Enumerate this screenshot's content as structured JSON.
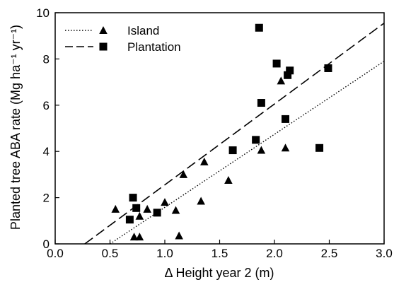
{
  "chart_data": {
    "type": "scatter",
    "xlabel": "Δ Height year 2 (m)",
    "ylabel": "Planted tree ABA rate (Mg ha⁻¹ yr⁻¹)",
    "xlim": [
      0.0,
      3.0
    ],
    "ylim": [
      0,
      10
    ],
    "x_ticks": [
      "0.0",
      "0.5",
      "1.0",
      "1.5",
      "2.0",
      "2.5",
      "3.0"
    ],
    "y_ticks": [
      "0",
      "2",
      "4",
      "6",
      "8",
      "10"
    ],
    "grid": false,
    "legend_position": "top-left",
    "series": [
      {
        "name": "Island",
        "marker": "triangle",
        "line_style": "dotted",
        "color": "#000000",
        "points": [
          [
            0.55,
            1.5
          ],
          [
            0.72,
            0.3
          ],
          [
            0.77,
            0.3
          ],
          [
            0.77,
            1.2
          ],
          [
            0.84,
            1.5
          ],
          [
            1.0,
            1.8
          ],
          [
            1.1,
            1.45
          ],
          [
            1.13,
            0.35
          ],
          [
            1.17,
            3.0
          ],
          [
            1.33,
            1.85
          ],
          [
            1.36,
            3.55
          ],
          [
            1.58,
            2.75
          ],
          [
            1.88,
            4.05
          ],
          [
            2.06,
            7.05
          ],
          [
            2.1,
            4.15
          ]
        ],
        "fit_line": [
          [
            0.5,
            0.0
          ],
          [
            3.0,
            7.9
          ]
        ]
      },
      {
        "name": "Plantation",
        "marker": "square",
        "line_style": "dashed",
        "color": "#000000",
        "points": [
          [
            0.68,
            1.05
          ],
          [
            0.71,
            2.0
          ],
          [
            0.74,
            1.55
          ],
          [
            0.93,
            1.35
          ],
          [
            1.62,
            4.05
          ],
          [
            1.83,
            4.5
          ],
          [
            1.86,
            9.35
          ],
          [
            1.88,
            6.1
          ],
          [
            2.02,
            7.8
          ],
          [
            2.1,
            5.4
          ],
          [
            2.12,
            7.3
          ],
          [
            2.14,
            7.5
          ],
          [
            2.41,
            4.15
          ],
          [
            2.49,
            7.6
          ]
        ],
        "fit_line": [
          [
            0.27,
            0.0
          ],
          [
            3.0,
            9.55
          ]
        ]
      }
    ]
  }
}
